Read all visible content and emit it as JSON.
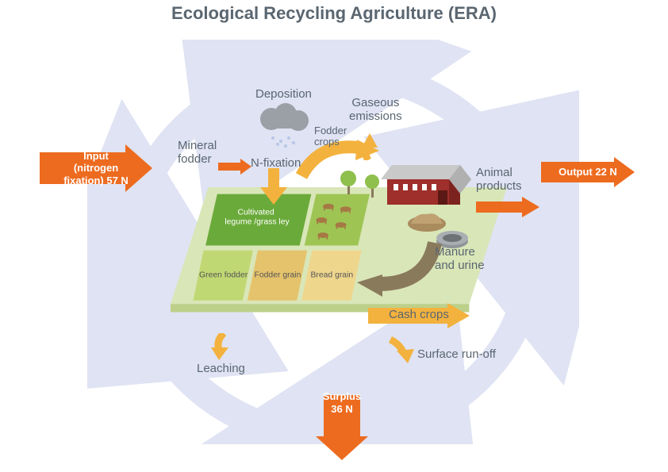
{
  "title": "Ecological Recycling Agriculture (ERA)",
  "colors": {
    "title": "#5a6670",
    "text": "#5a6670",
    "orange": "#ed6b1f",
    "orange_text": "#ed6b1f",
    "yellow": "#f3b23e",
    "circle": "#dfe3f3",
    "ground": "#d9e6b8",
    "ground_side": "#bcd08a",
    "green_dark": "#6aaa3a",
    "green_mid": "#9ec554",
    "green_light": "#c0d873",
    "tan": "#e5c36c",
    "tan_light": "#efd68d",
    "brown_arrow": "#8a7a5c",
    "barn_red": "#9e2f2a",
    "barn_roof": "#c9c9c9",
    "cloud": "#9aa0a6",
    "tree": "#8fbf4d",
    "cow": "#a67844",
    "manure": "#a98b5e",
    "tank": "#a9aeb2"
  },
  "arrows": {
    "input": {
      "label": "Input (nitrogen\nfixation) 57 N"
    },
    "output": {
      "label": "Output 22 N"
    },
    "surplus": {
      "label": "Surplus\n36 N"
    }
  },
  "labels": {
    "deposition": "Deposition",
    "gaseous": "Gaseous\nemissions",
    "fodder_crops": "Fodder\ncrops",
    "mineral_fodder": "Mineral\nfodder",
    "n_fixation": "N-fixation",
    "animal_products": "Animal\nproducts",
    "manure": "Manure\nand urine",
    "cash_crops": "Cash crops",
    "surface_runoff": "Surface run-off",
    "leaching": "Leaching"
  },
  "plots": {
    "cultivated": "Cultivated\nlegume /grass ley",
    "green_fodder": "Green fodder",
    "fodder_grain": "Fodder grain",
    "bread_grain": "Bread grain"
  }
}
